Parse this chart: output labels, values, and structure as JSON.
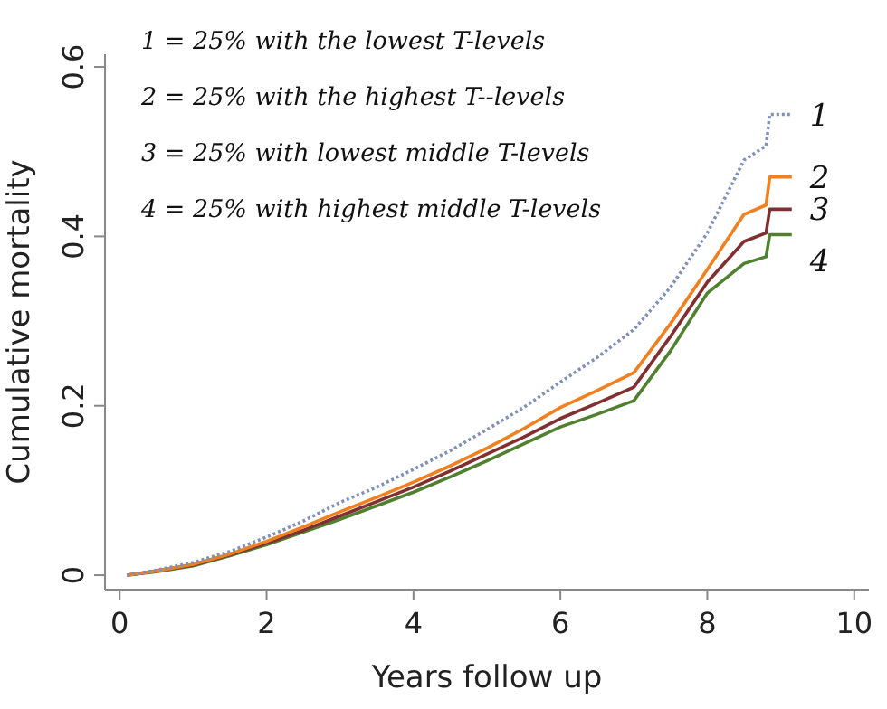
{
  "chart_data": {
    "type": "line",
    "xlabel": "Years follow up",
    "ylabel": "Cumulative mortality",
    "xlim": [
      -0.2,
      10.2
    ],
    "ylim": [
      -0.017,
      0.615
    ],
    "xticks": [
      0,
      2,
      4,
      6,
      8,
      10
    ],
    "yticks": [
      0,
      0.2,
      0.4,
      0.6
    ],
    "x": [
      0.1,
      0.5,
      1,
      1.5,
      2,
      2.5,
      3,
      3.5,
      4,
      4.5,
      5,
      5.5,
      6,
      6.5,
      7,
      7.5,
      8,
      8.5,
      8.8,
      8.85,
      9.15
    ],
    "series": [
      {
        "name": "1",
        "color": "#8090b8",
        "line_style": "dotted",
        "values": [
          0,
          0.006,
          0.015,
          0.028,
          0.045,
          0.064,
          0.086,
          0.104,
          0.125,
          0.147,
          0.172,
          0.198,
          0.228,
          0.257,
          0.29,
          0.34,
          0.404,
          0.49,
          0.507,
          0.544,
          0.544
        ]
      },
      {
        "name": "2",
        "color": "#f08020",
        "line_style": "solid",
        "values": [
          0,
          0.005,
          0.013,
          0.025,
          0.04,
          0.057,
          0.075,
          0.092,
          0.11,
          0.129,
          0.15,
          0.173,
          0.198,
          0.218,
          0.239,
          0.297,
          0.361,
          0.426,
          0.437,
          0.47,
          0.47
        ]
      },
      {
        "name": "3",
        "color": "#803030",
        "line_style": "solid",
        "values": [
          0,
          0.005,
          0.012,
          0.024,
          0.038,
          0.053,
          0.07,
          0.087,
          0.104,
          0.123,
          0.143,
          0.163,
          0.185,
          0.203,
          0.222,
          0.282,
          0.346,
          0.394,
          0.404,
          0.432,
          0.432
        ]
      },
      {
        "name": "4",
        "color": "#508030",
        "line_style": "solid",
        "values": [
          0,
          0.004,
          0.011,
          0.023,
          0.036,
          0.051,
          0.066,
          0.082,
          0.098,
          0.116,
          0.135,
          0.155,
          0.175,
          0.19,
          0.206,
          0.265,
          0.333,
          0.368,
          0.376,
          0.402,
          0.402
        ]
      }
    ],
    "annotations": [
      "1 = 25% with the lowest T-levels",
      "2 = 25% with the highest T--levels",
      "3 = 25% with lowest middle T-levels",
      "4 = 25% with highest middle T-levels"
    ],
    "grid": false
  }
}
